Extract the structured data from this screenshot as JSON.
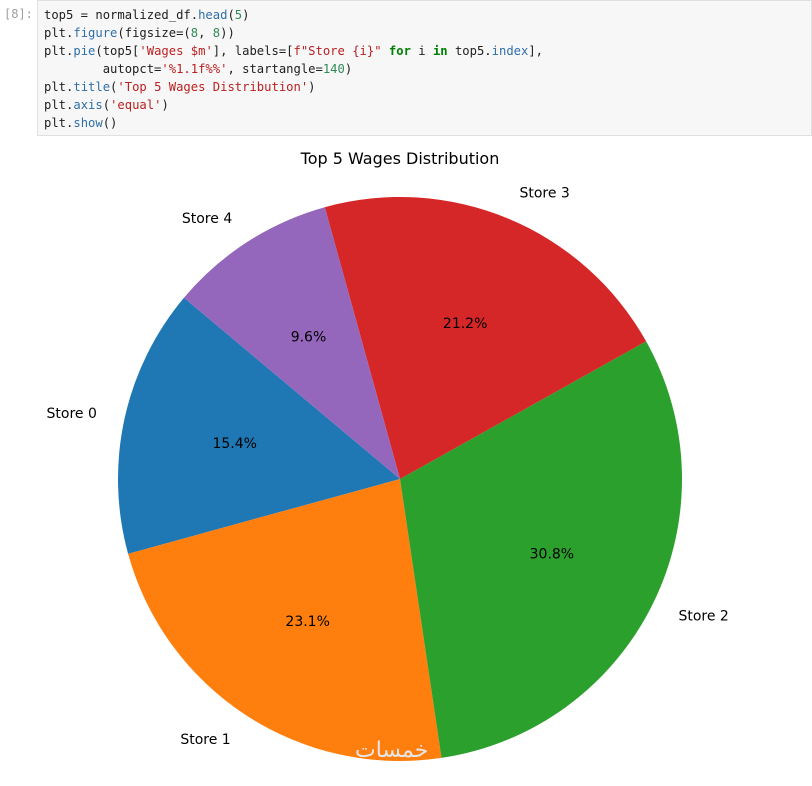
{
  "cell": {
    "prompt": "[8]:",
    "code_lines": [
      [
        {
          "t": "top5 = normalized_df.",
          "c": "op"
        },
        {
          "t": "head",
          "c": "fn"
        },
        {
          "t": "(",
          "c": "op"
        },
        {
          "t": "5",
          "c": "num"
        },
        {
          "t": ")",
          "c": "op"
        }
      ],
      [
        {
          "t": "plt.",
          "c": "op"
        },
        {
          "t": "figure",
          "c": "fn"
        },
        {
          "t": "(figsize=(",
          "c": "op"
        },
        {
          "t": "8",
          "c": "num"
        },
        {
          "t": ", ",
          "c": "op"
        },
        {
          "t": "8",
          "c": "num"
        },
        {
          "t": "))",
          "c": "op"
        }
      ],
      [
        {
          "t": "plt.",
          "c": "op"
        },
        {
          "t": "pie",
          "c": "fn"
        },
        {
          "t": "(top5[",
          "c": "op"
        },
        {
          "t": "'Wages $m'",
          "c": "str"
        },
        {
          "t": "], labels=[",
          "c": "op"
        },
        {
          "t": "f\"Store {i}\"",
          "c": "str"
        },
        {
          "t": " ",
          "c": "op"
        },
        {
          "t": "for",
          "c": "kw"
        },
        {
          "t": " i ",
          "c": "op"
        },
        {
          "t": "in",
          "c": "kw"
        },
        {
          "t": " top5.",
          "c": "op"
        },
        {
          "t": "index",
          "c": "fn"
        },
        {
          "t": "],",
          "c": "op"
        }
      ],
      [
        {
          "t": "        autopct=",
          "c": "op"
        },
        {
          "t": "'%1.1f%%'",
          "c": "str"
        },
        {
          "t": ", startangle=",
          "c": "op"
        },
        {
          "t": "140",
          "c": "num"
        },
        {
          "t": ")",
          "c": "op"
        }
      ],
      [
        {
          "t": "plt.",
          "c": "op"
        },
        {
          "t": "title",
          "c": "fn"
        },
        {
          "t": "(",
          "c": "op"
        },
        {
          "t": "'Top 5 Wages Distribution'",
          "c": "str"
        },
        {
          "t": ")",
          "c": "op"
        }
      ],
      [
        {
          "t": "plt.",
          "c": "op"
        },
        {
          "t": "axis",
          "c": "fn"
        },
        {
          "t": "(",
          "c": "op"
        },
        {
          "t": "'equal'",
          "c": "str"
        },
        {
          "t": ")",
          "c": "op"
        }
      ],
      [
        {
          "t": "plt.",
          "c": "op"
        },
        {
          "t": "show",
          "c": "fn"
        },
        {
          "t": "()",
          "c": "op"
        }
      ]
    ]
  },
  "chart_data": {
    "type": "pie",
    "title": "Top 5 Wages Distribution",
    "start_angle_deg": 140,
    "direction": "counterclockwise",
    "categories": [
      "Store 0",
      "Store 1",
      "Store 2",
      "Store 3",
      "Store 4"
    ],
    "values": [
      15.4,
      23.1,
      30.8,
      21.2,
      9.6
    ],
    "pct_labels": [
      "15.4%",
      "23.1%",
      "30.8%",
      "21.2%",
      "9.6%"
    ],
    "colors": [
      "#1f77b4",
      "#ff7f0e",
      "#2ca02c",
      "#d62728",
      "#9467bd"
    ]
  },
  "watermark": "خمسات"
}
